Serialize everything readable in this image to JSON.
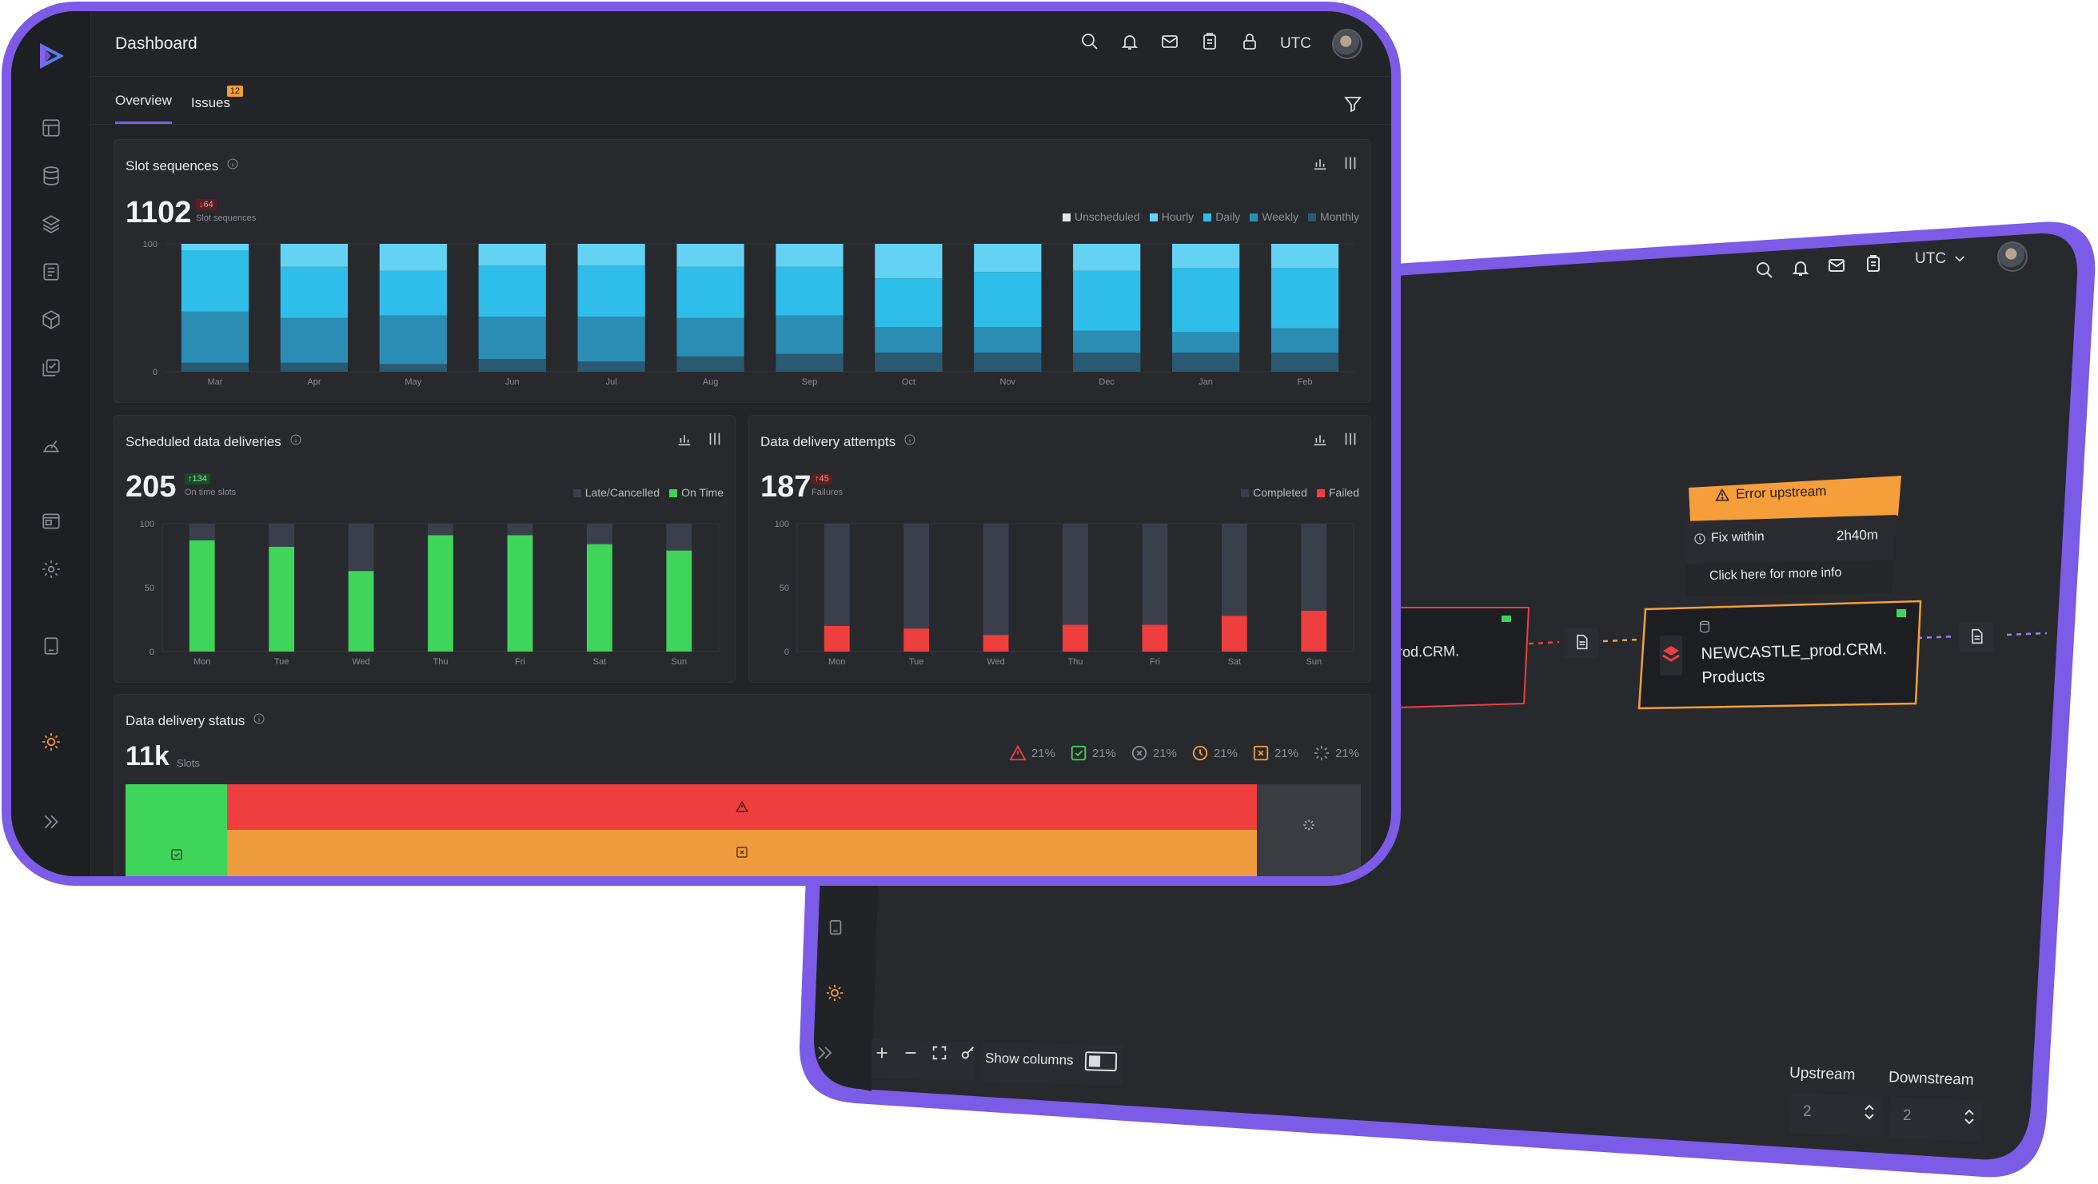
{
  "front": {
    "title": "Dashboard",
    "timezone": "UTC",
    "tabs": [
      {
        "label": "Overview",
        "active": true
      },
      {
        "label": "Issues",
        "badge": "12"
      }
    ],
    "slot_card": {
      "title": "Slot sequences",
      "value": "1102",
      "delta": "↓64",
      "sublabel": "Slot sequences",
      "legend": [
        "Unscheduled",
        "Hourly",
        "Daily",
        "Weekly",
        "Monthly"
      ]
    },
    "sched_card": {
      "title": "Scheduled data deliveries",
      "value": "205",
      "delta": "↑134",
      "sublabel": "On time slots",
      "legend": [
        "Late/Cancelled",
        "On Time"
      ]
    },
    "attempts_card": {
      "title": "Data delivery attempts",
      "value": "187",
      "delta": "↑45",
      "sublabel": "Failures",
      "legend": [
        "Completed",
        "Failed"
      ]
    },
    "status_card": {
      "title": "Data delivery status",
      "value": "11k",
      "sublabel": "Slots",
      "percents": [
        "21%",
        "21%",
        "21%",
        "21%",
        "21%",
        "21%"
      ]
    }
  },
  "back": {
    "timezone": "UTC",
    "error_banner": "Error upstream",
    "fix_label": "Fix within",
    "fix_value": "2h40m",
    "more_info": "Click here for more info",
    "node_left_label": "rod.CRM.",
    "node_main_line1": "NEWCASTLE_prod.CRM.",
    "node_main_line2": "Products",
    "show_columns": "Show columns",
    "upstream_label": "Upstream",
    "upstream_value": "2",
    "downstream_label": "Downstream",
    "downstream_value": "2"
  },
  "chart_data": [
    {
      "type": "bar",
      "title": "Slot sequences",
      "stacked": true,
      "categories": [
        "Mar",
        "Apr",
        "May",
        "Jun",
        "Jul",
        "Aug",
        "Sep",
        "Oct",
        "Nov",
        "Dec",
        "Jan",
        "Feb"
      ],
      "ylim": [
        0,
        100
      ],
      "yticks": [
        "0",
        "100"
      ],
      "series": [
        {
          "name": "Monthly",
          "values": [
            7,
            7,
            6,
            10,
            8,
            12,
            14,
            15,
            15,
            15,
            15,
            15
          ]
        },
        {
          "name": "Weekly",
          "values": [
            40,
            35,
            38,
            33,
            35,
            30,
            30,
            20,
            20,
            17,
            16,
            19
          ]
        },
        {
          "name": "Daily",
          "values": [
            48,
            40,
            35,
            40,
            40,
            40,
            38,
            38,
            43,
            47,
            50,
            47
          ]
        },
        {
          "name": "Hourly",
          "values": [
            5,
            18,
            21,
            17,
            17,
            18,
            18,
            27,
            22,
            21,
            19,
            19
          ]
        },
        {
          "name": "Unscheduled",
          "values": [
            0,
            0,
            0,
            0,
            0,
            0,
            0,
            0,
            0,
            0,
            0,
            0
          ]
        }
      ],
      "colors": {
        "Monthly": "#2a5a72",
        "Weekly": "#2b8db3",
        "Daily": "#2fbdea",
        "Hourly": "#63d2f3",
        "Unscheduled": "#e6e6e6"
      }
    },
    {
      "type": "bar",
      "title": "Scheduled data deliveries",
      "stacked": true,
      "categories": [
        "Mon",
        "Tue",
        "Wed",
        "Thu",
        "Fri",
        "Sat",
        "Sun"
      ],
      "ylim": [
        0,
        100
      ],
      "yticks": [
        "0",
        "50",
        "100"
      ],
      "series": [
        {
          "name": "On Time",
          "values": [
            87,
            82,
            63,
            91,
            91,
            84,
            79
          ]
        },
        {
          "name": "Late/Cancelled",
          "values": [
            13,
            18,
            37,
            9,
            9,
            16,
            21
          ]
        }
      ],
      "colors": {
        "On Time": "#3fd45a",
        "Late/Cancelled": "#3b3f4c"
      }
    },
    {
      "type": "bar",
      "title": "Data delivery attempts",
      "stacked": true,
      "categories": [
        "Mon",
        "Tue",
        "Wed",
        "Thu",
        "Fri",
        "Sat",
        "Sun"
      ],
      "ylim": [
        0,
        100
      ],
      "yticks": [
        "0",
        "50",
        "100"
      ],
      "series": [
        {
          "name": "Failed",
          "values": [
            20,
            18,
            13,
            21,
            21,
            28,
            32
          ]
        },
        {
          "name": "Completed",
          "values": [
            80,
            82,
            87,
            79,
            79,
            72,
            68
          ]
        }
      ],
      "colors": {
        "Failed": "#ef3e3e",
        "Completed": "#3b3f4c"
      }
    }
  ]
}
